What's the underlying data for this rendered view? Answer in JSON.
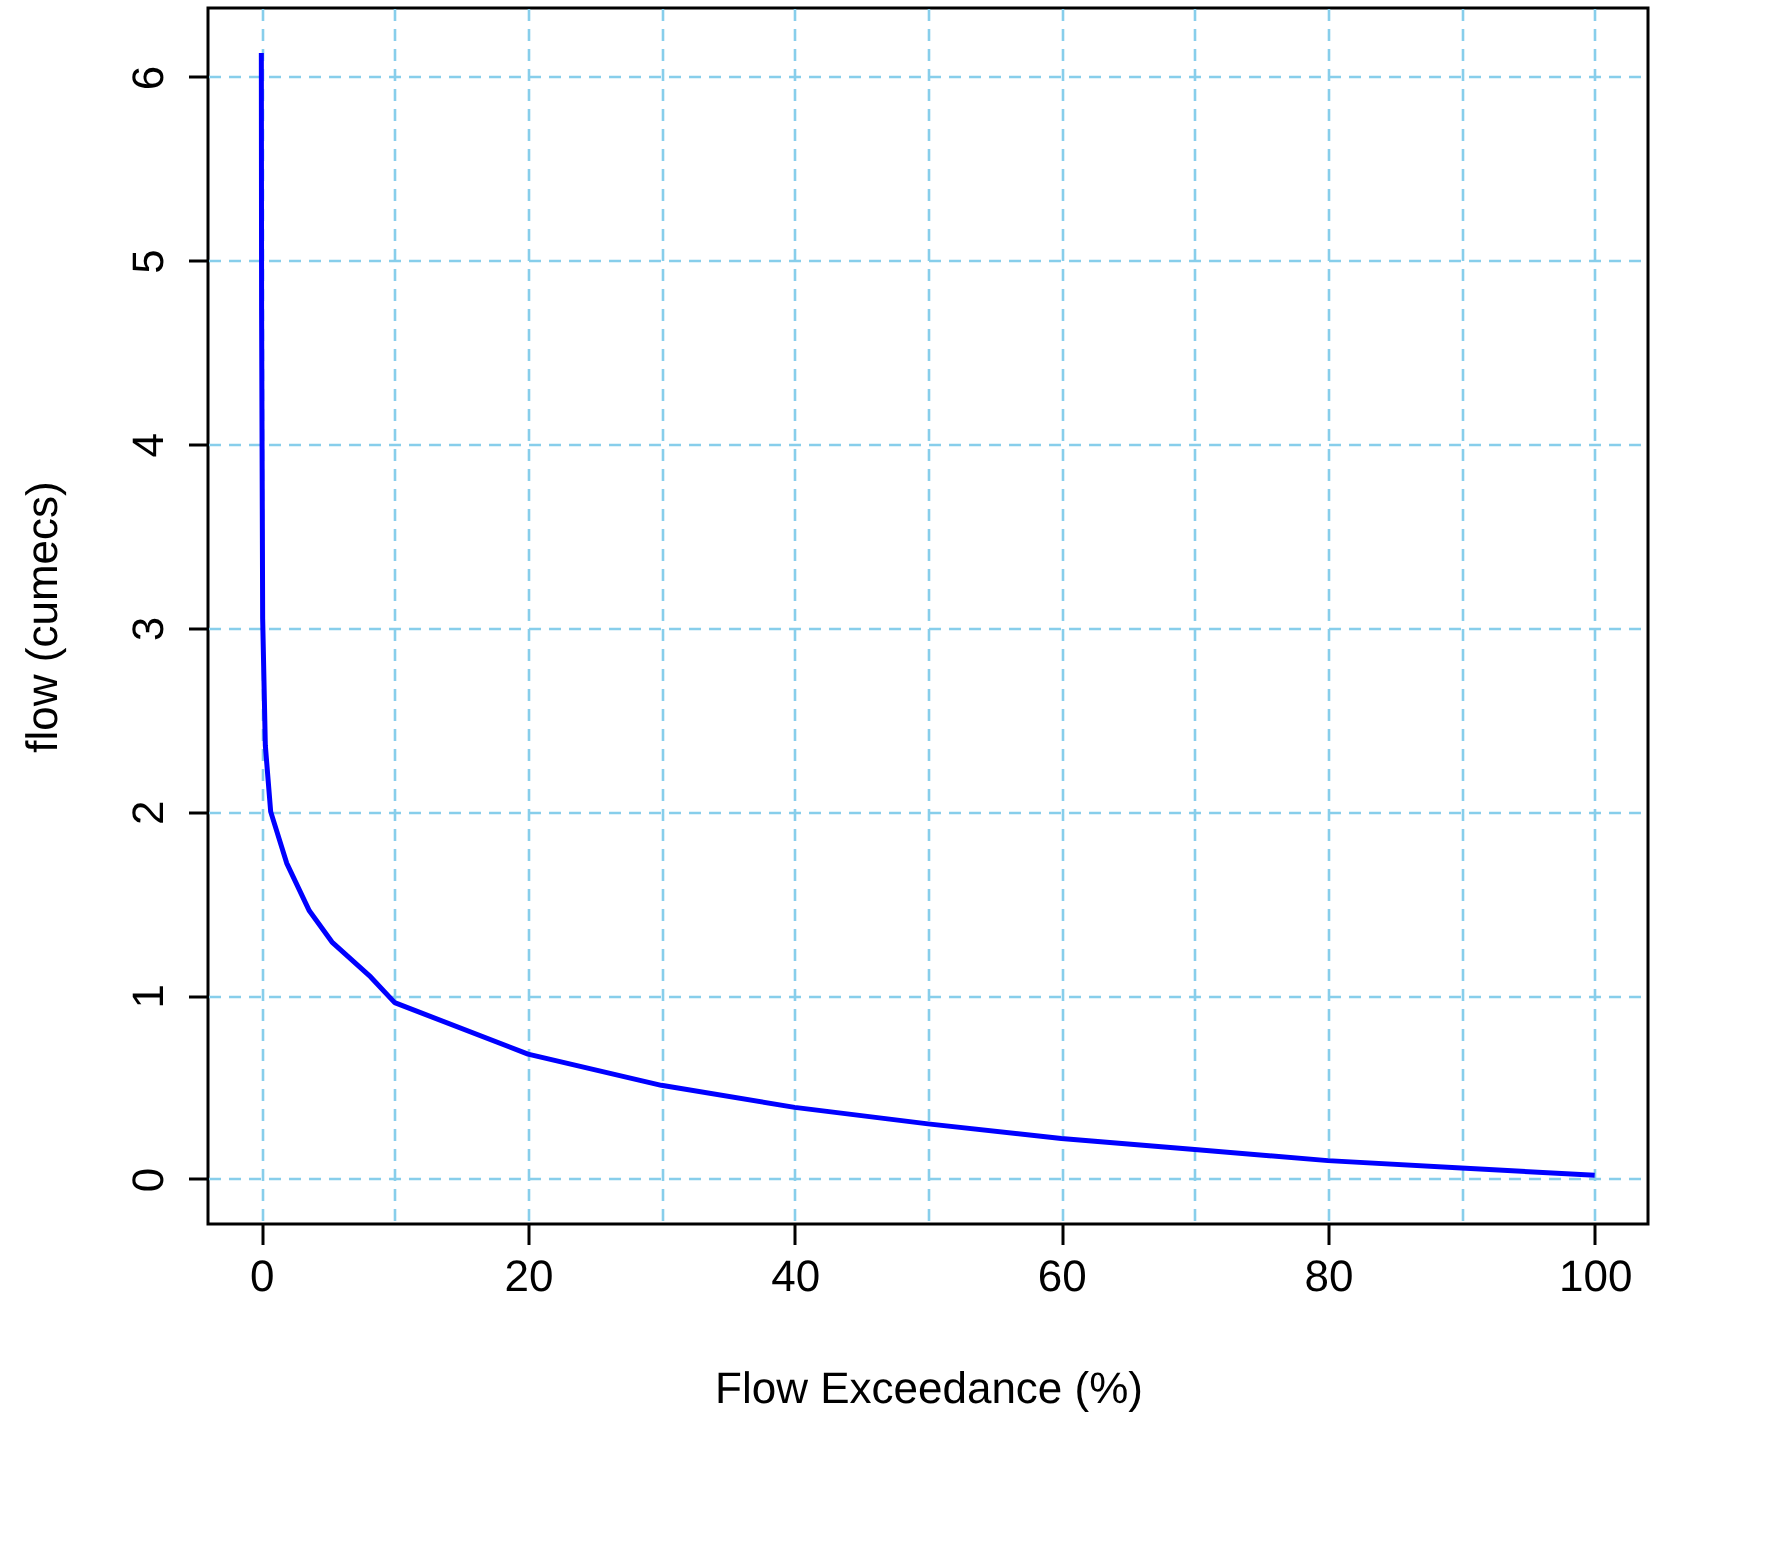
{
  "chart_data": {
    "type": "line",
    "xlabel": "Flow Exceedance (%)",
    "ylabel": "flow (cumecs)",
    "x": [
      0,
      0.02,
      0.1,
      0.3,
      0.7,
      1.9,
      3.6,
      5.3,
      8.2,
      10,
      20,
      30,
      40,
      50,
      60,
      70,
      80,
      90,
      100
    ],
    "series": [
      {
        "color": "#0000ff",
        "values": [
          6.13,
          4.73,
          3.05,
          2.36,
          2.0,
          1.72,
          1.46,
          1.29,
          1.1,
          0.96,
          0.68,
          0.51,
          0.39,
          0.3,
          0.22,
          0.16,
          0.1,
          0.06,
          0.02
        ]
      }
    ],
    "xlim": [
      -4,
      104
    ],
    "ylim": [
      -0.245,
      6.375
    ],
    "xticks": [
      0,
      {
        "value": 10,
        "label": null
      },
      20,
      {
        "value": 30,
        "label": null
      },
      40,
      {
        "value": 50,
        "label": null
      },
      60,
      {
        "value": 70,
        "label": null
      },
      80,
      {
        "value": 90,
        "label": null
      },
      100
    ],
    "yticks": [
      0,
      1,
      2,
      3,
      4,
      5,
      6
    ],
    "grid": true,
    "line_style": "solid",
    "marker": "none",
    "legend": false
  }
}
